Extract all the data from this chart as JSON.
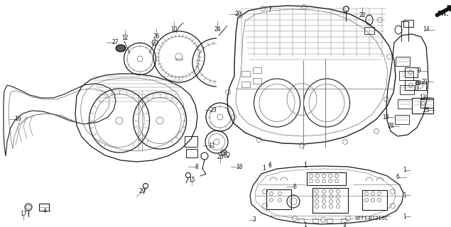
{
  "bg_color": "#ffffff",
  "part_number": "ST73-B1210C",
  "fr_label": "FR.",
  "figsize": [
    6.35,
    3.2
  ],
  "dpi": 100,
  "line_color": "#1a1a1a",
  "gray": "#666666"
}
